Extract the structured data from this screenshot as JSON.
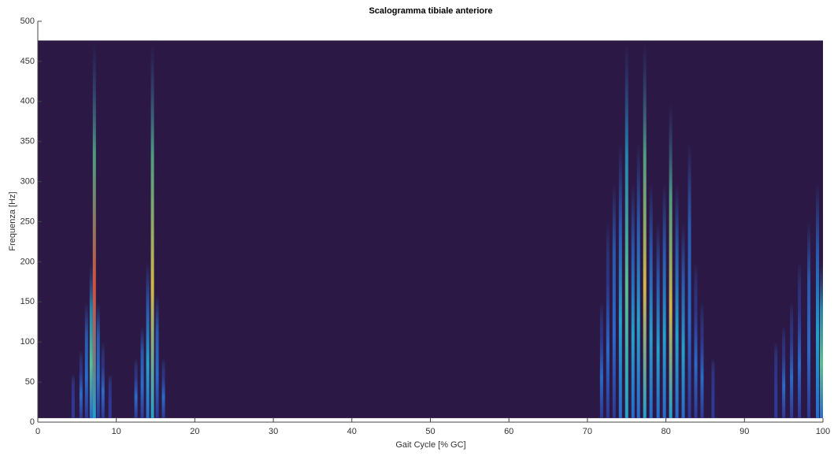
{
  "chart_data": {
    "type": "scalogram",
    "title": "Scalogramma tibiale anteriore",
    "x_label": "Gait Cycle [% GC]",
    "y_label": "Frequenza [Hz]",
    "xlim": [
      0,
      100
    ],
    "ylim": [
      0,
      500
    ],
    "xticks": [
      0,
      10,
      20,
      30,
      40,
      50,
      60,
      70,
      80,
      90,
      100
    ],
    "yticks": [
      0,
      50,
      100,
      150,
      200,
      250,
      300,
      350,
      400,
      450,
      500
    ],
    "y_extent": [
      5,
      476
    ],
    "background_color": "#2b1844",
    "colormap": [
      "#2b1844",
      "#2f3d9c",
      "#2a74d8",
      "#24b0d8",
      "#5fd39a",
      "#e6c84a",
      "#e8553a"
    ],
    "ridges": {
      "x": [
        4.5,
        5.5,
        6.2,
        6.8,
        7.2,
        7.7,
        8.3,
        9.2,
        12.5,
        13.3,
        14.0,
        14.6,
        15.2,
        16.0,
        71.8,
        72.6,
        73.4,
        74.2,
        75.0,
        75.8,
        76.5,
        77.3,
        78.1,
        79.0,
        79.8,
        80.6,
        81.4,
        82.2,
        83.0,
        83.8,
        84.6,
        86.0,
        94.0,
        95.0,
        96.0,
        97.0,
        98.2,
        99.3,
        99.8
      ],
      "values": [
        60,
        90,
        150,
        200,
        475,
        150,
        100,
        60,
        80,
        120,
        200,
        475,
        160,
        80,
        150,
        250,
        300,
        350,
        475,
        300,
        350,
        475,
        300,
        250,
        300,
        400,
        300,
        250,
        350,
        200,
        150,
        80,
        100,
        120,
        150,
        200,
        250,
        300,
        200
      ],
      "intensity": [
        0.2,
        0.3,
        0.4,
        0.6,
        0.95,
        0.4,
        0.3,
        0.2,
        0.3,
        0.4,
        0.5,
        0.85,
        0.4,
        0.3,
        0.3,
        0.35,
        0.4,
        0.45,
        0.7,
        0.5,
        0.5,
        0.9,
        0.55,
        0.5,
        0.5,
        0.85,
        0.55,
        0.45,
        0.4,
        0.35,
        0.3,
        0.2,
        0.2,
        0.25,
        0.3,
        0.35,
        0.4,
        0.5,
        0.6
      ]
    }
  }
}
